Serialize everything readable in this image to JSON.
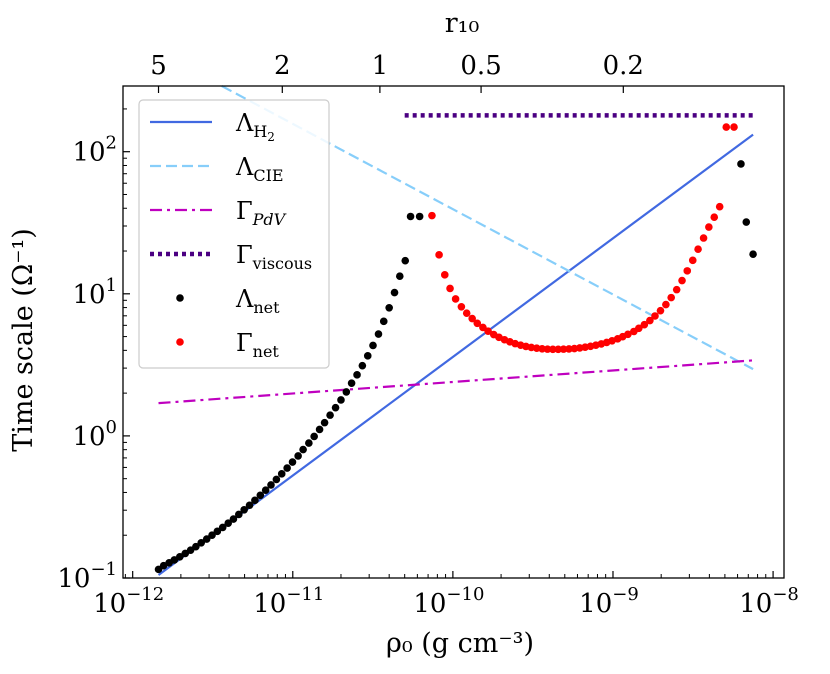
{
  "chart_data": {
    "type": "line",
    "title": "",
    "xlabel": "ρ₀ (g cm⁻³)",
    "ylabel": "Time scale (Ω⁻¹)",
    "top_axis_label": "r₁₀",
    "xscale": "log",
    "yscale": "log",
    "xlim": [
      8.7e-13,
      1.17e-08
    ],
    "ylim": [
      0.1,
      290
    ],
    "grid": false,
    "legend_position": "upper-left",
    "x_ticks": [
      {
        "value": 1e-12,
        "base": "10",
        "exp": "−12"
      },
      {
        "value": 1e-11,
        "base": "10",
        "exp": "−11"
      },
      {
        "value": 1e-10,
        "base": "10",
        "exp": "−10"
      },
      {
        "value": 1e-09,
        "base": "10",
        "exp": "−9"
      },
      {
        "value": 1e-08,
        "base": "10",
        "exp": "−8"
      }
    ],
    "y_ticks": [
      {
        "value": 0.1,
        "base": "10",
        "exp": "−1"
      },
      {
        "value": 1,
        "base": "10",
        "exp": "0"
      },
      {
        "value": 10,
        "base": "10",
        "exp": "1"
      },
      {
        "value": 100,
        "base": "10",
        "exp": "2"
      }
    ],
    "top_ticks": [
      {
        "label": "5",
        "rho": 1.45e-12
      },
      {
        "label": "2",
        "rho": 8.6e-12
      },
      {
        "label": "1",
        "rho": 3.5e-11
      },
      {
        "label": "0.5",
        "rho": 1.5e-10
      },
      {
        "label": "0.2",
        "rho": 1.16e-09
      }
    ],
    "series": [
      {
        "name": "Λ_H2",
        "style": "solid",
        "color": "#4169e1",
        "x": [
          1.45e-12,
          7.5e-09
        ],
        "y": [
          0.105,
          132
        ]
      },
      {
        "name": "Λ_CIE",
        "style": "dashed",
        "color": "#87cefa",
        "x": [
          3.6e-12,
          7.5e-09
        ],
        "y": [
          290,
          2.95
        ]
      },
      {
        "name": "Γ_PdV",
        "style": "dashdot",
        "color": "#bf00bf",
        "x": [
          1.45e-12,
          7.5e-09
        ],
        "y": [
          1.7,
          3.4
        ]
      },
      {
        "name": "Γ_viscous",
        "style": "dotted",
        "color": "#4b0082",
        "x": [
          5e-11,
          7.5e-09
        ],
        "y": [
          180,
          180
        ]
      },
      {
        "name": "Λ_net",
        "style": "points",
        "color": "#000000",
        "x": [
          1.45e-12,
          1.56e-12,
          1.69e-12,
          1.82e-12,
          1.97e-12,
          2.13e-12,
          2.3e-12,
          2.48e-12,
          2.68e-12,
          2.9e-12,
          3.13e-12,
          3.38e-12,
          3.65e-12,
          3.95e-12,
          4.26e-12,
          4.6e-12,
          4.97e-12,
          5.37e-12,
          5.8e-12,
          6.27e-12,
          6.77e-12,
          7.31e-12,
          7.9e-12,
          8.53e-12,
          9.22e-12,
          9.96e-12,
          1.08e-11,
          1.16e-11,
          1.26e-11,
          1.36e-11,
          1.47e-11,
          1.58e-11,
          1.71e-11,
          1.85e-11,
          2e-11,
          2.16e-11,
          2.33e-11,
          2.52e-11,
          2.72e-11,
          2.94e-11,
          3.17e-11,
          3.43e-11,
          3.7e-11,
          4e-11,
          4.32e-11,
          4.66e-11,
          5.04e-11,
          5.44e-11,
          6.2e-11,
          6.3e-09,
          6.8e-09,
          7.5e-09
        ],
        "y": [
          0.115,
          0.122,
          0.128,
          0.134,
          0.141,
          0.149,
          0.157,
          0.166,
          0.177,
          0.188,
          0.2,
          0.213,
          0.227,
          0.243,
          0.26,
          0.28,
          0.302,
          0.325,
          0.352,
          0.382,
          0.415,
          0.452,
          0.494,
          0.541,
          0.594,
          0.655,
          0.723,
          0.801,
          0.89,
          0.991,
          1.11,
          1.24,
          1.4,
          1.58,
          1.79,
          2.04,
          2.35,
          2.69,
          3.12,
          3.66,
          4.33,
          5.21,
          6.4,
          7.97,
          10.2,
          13.3,
          17.1,
          35,
          35,
          82,
          32,
          19
        ]
      },
      {
        "name": "Γ_net",
        "style": "points",
        "color": "#ff0000",
        "x": [
          7.4e-11,
          8.2e-11,
          8.9e-11,
          9.6e-11,
          1.04e-10,
          1.13e-10,
          1.22e-10,
          1.32e-10,
          1.42e-10,
          1.54e-10,
          1.66e-10,
          1.8e-10,
          1.94e-10,
          2.1e-10,
          2.27e-10,
          2.45e-10,
          2.65e-10,
          2.86e-10,
          3.09e-10,
          3.34e-10,
          3.61e-10,
          3.9e-10,
          4.21e-10,
          4.55e-10,
          4.91e-10,
          5.31e-10,
          5.74e-10,
          6.2e-10,
          6.7e-10,
          7.24e-10,
          7.82e-10,
          8.45e-10,
          9.13e-10,
          9.87e-10,
          1.07e-09,
          1.15e-09,
          1.24e-09,
          1.35e-09,
          1.45e-09,
          1.57e-09,
          1.7e-09,
          1.83e-09,
          1.98e-09,
          2.14e-09,
          2.31e-09,
          2.5e-09,
          2.7e-09,
          2.91e-09,
          3.15e-09,
          3.4e-09,
          3.68e-09,
          3.97e-09,
          4.29e-09,
          4.64e-09,
          5.1e-09,
          5.7e-09
        ],
        "y": [
          35.5,
          18.8,
          13.6,
          10.9,
          9.2,
          8.1,
          7.3,
          6.7,
          6.2,
          5.8,
          5.46,
          5.17,
          4.94,
          4.75,
          4.59,
          4.46,
          4.35,
          4.26,
          4.19,
          4.14,
          4.1,
          4.08,
          4.07,
          4.07,
          4.08,
          4.09,
          4.12,
          4.16,
          4.21,
          4.27,
          4.35,
          4.44,
          4.55,
          4.67,
          4.82,
          4.99,
          5.19,
          5.43,
          5.72,
          6.06,
          6.48,
          6.98,
          7.61,
          8.4,
          9.4,
          10.7,
          12.4,
          14.5,
          17.2,
          20.6,
          24.7,
          29.5,
          34.6,
          41,
          149,
          149
        ]
      }
    ],
    "legend": [
      {
        "name": "Λ_H2",
        "main": "Λ",
        "sub": "H",
        "subsub": "2"
      },
      {
        "name": "Λ_CIE",
        "main": "Λ",
        "sub": "CIE",
        "subsub": ""
      },
      {
        "name": "Γ_PdV",
        "main": "Γ",
        "sub": "PdV",
        "subsub": ""
      },
      {
        "name": "Γ_viscous",
        "main": "Γ",
        "sub": "viscous",
        "subsub": ""
      },
      {
        "name": "Λ_net",
        "main": "Λ",
        "sub": "net",
        "subsub": ""
      },
      {
        "name": "Γ_net",
        "main": "Γ",
        "sub": "net",
        "subsub": ""
      }
    ]
  }
}
